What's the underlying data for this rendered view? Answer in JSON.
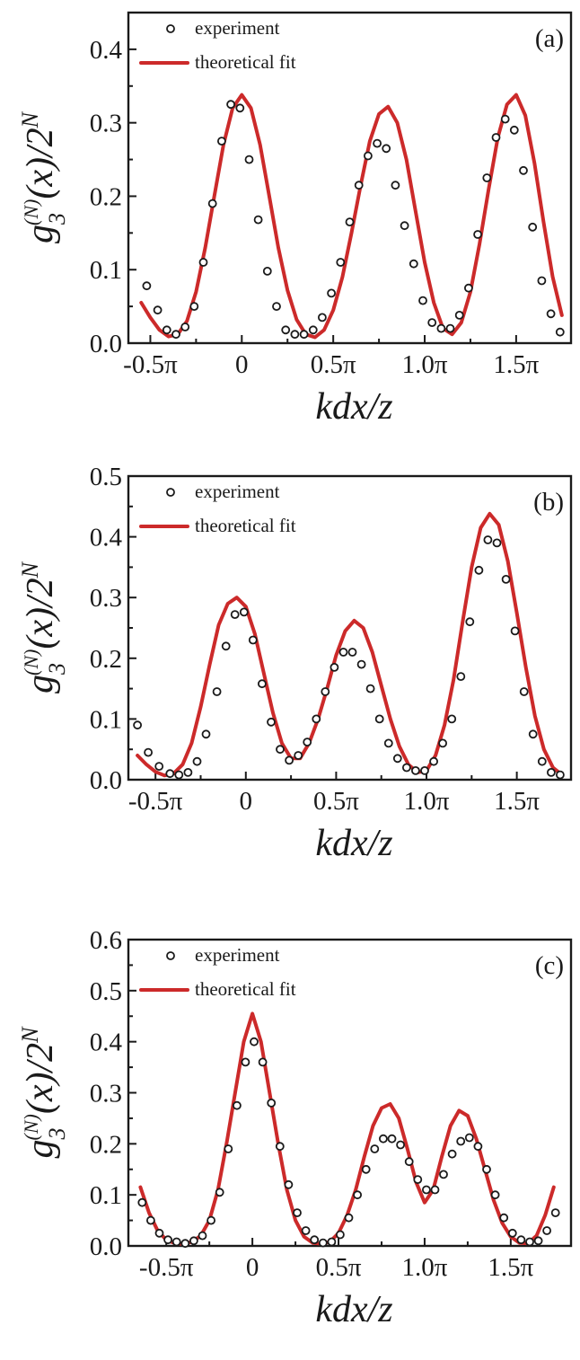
{
  "chart_data": [
    {
      "type": "scatter",
      "panel_label": "(a)",
      "xlabel": "kdx/z",
      "ylabel": "g3(N)(x)/2N",
      "xlim": [
        -0.62,
        1.8
      ],
      "ylim": [
        0.0,
        0.45
      ],
      "x_tick_labels": [
        "-0.5π",
        "0",
        "0.5π",
        "1.0π",
        "1.5π"
      ],
      "x_ticks": [
        -0.5,
        0,
        0.5,
        1.0,
        1.5
      ],
      "y_tick_labels": [
        "0.0",
        "0.1",
        "0.2",
        "0.3",
        "0.4"
      ],
      "y_ticks": [
        0.0,
        0.1,
        0.2,
        0.3,
        0.4
      ],
      "legend": {
        "position": "top-left",
        "entries": [
          "experiment",
          "theoretical fit"
        ]
      },
      "series": [
        {
          "name": "experiment",
          "kind": "points",
          "x": [
            -0.52,
            -0.46,
            -0.41,
            -0.36,
            -0.31,
            -0.26,
            -0.21,
            -0.16,
            -0.11,
            -0.06,
            -0.01,
            0.04,
            0.09,
            0.14,
            0.19,
            0.24,
            0.29,
            0.34,
            0.39,
            0.44,
            0.49,
            0.54,
            0.59,
            0.64,
            0.69,
            0.74,
            0.79,
            0.84,
            0.89,
            0.94,
            0.99,
            1.04,
            1.09,
            1.14,
            1.19,
            1.24,
            1.29,
            1.34,
            1.39,
            1.44,
            1.49,
            1.54,
            1.59,
            1.64,
            1.69,
            1.74
          ],
          "y": [
            0.078,
            0.045,
            0.018,
            0.012,
            0.022,
            0.05,
            0.11,
            0.19,
            0.275,
            0.325,
            0.32,
            0.25,
            0.168,
            0.098,
            0.05,
            0.018,
            0.012,
            0.012,
            0.018,
            0.035,
            0.068,
            0.11,
            0.165,
            0.215,
            0.255,
            0.272,
            0.265,
            0.215,
            0.16,
            0.108,
            0.058,
            0.028,
            0.02,
            0.02,
            0.038,
            0.075,
            0.148,
            0.225,
            0.28,
            0.305,
            0.29,
            0.235,
            0.158,
            0.085,
            0.04,
            0.015
          ]
        },
        {
          "name": "theoretical fit",
          "kind": "line",
          "x": [
            -0.55,
            -0.5,
            -0.45,
            -0.4,
            -0.35,
            -0.3,
            -0.25,
            -0.2,
            -0.15,
            -0.1,
            -0.05,
            0,
            0.05,
            0.1,
            0.15,
            0.2,
            0.25,
            0.3,
            0.35,
            0.4,
            0.45,
            0.5,
            0.55,
            0.6,
            0.65,
            0.7,
            0.75,
            0.8,
            0.85,
            0.9,
            0.95,
            1,
            1.05,
            1.1,
            1.15,
            1.2,
            1.25,
            1.3,
            1.35,
            1.4,
            1.45,
            1.5,
            1.55,
            1.6,
            1.65,
            1.7,
            1.75
          ],
          "y": [
            0.055,
            0.035,
            0.018,
            0.009,
            0.012,
            0.03,
            0.07,
            0.13,
            0.2,
            0.27,
            0.32,
            0.338,
            0.32,
            0.27,
            0.2,
            0.13,
            0.072,
            0.032,
            0.012,
            0.008,
            0.018,
            0.045,
            0.09,
            0.15,
            0.215,
            0.275,
            0.312,
            0.322,
            0.3,
            0.25,
            0.18,
            0.11,
            0.055,
            0.02,
            0.012,
            0.028,
            0.07,
            0.135,
            0.21,
            0.28,
            0.325,
            0.338,
            0.31,
            0.245,
            0.165,
            0.09,
            0.038
          ]
        }
      ]
    },
    {
      "type": "scatter",
      "panel_label": "(b)",
      "xlabel": "kdx/z",
      "ylabel": "g3(N)(x)/2N",
      "xlim": [
        -0.65,
        1.8
      ],
      "ylim": [
        0.0,
        0.5
      ],
      "x_tick_labels": [
        "-0.5π",
        "0",
        "0.5π",
        "1.0π",
        "1.5π"
      ],
      "x_ticks": [
        -0.5,
        0,
        0.5,
        1.0,
        1.5
      ],
      "y_tick_labels": [
        "0.0",
        "0.1",
        "0.2",
        "0.3",
        "0.4",
        "0.5"
      ],
      "y_ticks": [
        0.0,
        0.1,
        0.2,
        0.3,
        0.4,
        0.5
      ],
      "legend": {
        "position": "top-left",
        "entries": [
          "experiment",
          "theoretical fit"
        ]
      },
      "series": [
        {
          "name": "experiment",
          "kind": "points",
          "x": [
            -0.6,
            -0.54,
            -0.48,
            -0.42,
            -0.37,
            -0.32,
            -0.27,
            -0.22,
            -0.16,
            -0.11,
            -0.06,
            -0.01,
            0.04,
            0.09,
            0.14,
            0.19,
            0.24,
            0.29,
            0.34,
            0.39,
            0.44,
            0.49,
            0.54,
            0.59,
            0.64,
            0.69,
            0.74,
            0.79,
            0.84,
            0.89,
            0.94,
            0.99,
            1.04,
            1.09,
            1.14,
            1.19,
            1.24,
            1.29,
            1.34,
            1.39,
            1.44,
            1.49,
            1.54,
            1.59,
            1.64,
            1.69,
            1.74
          ],
          "y": [
            0.09,
            0.045,
            0.022,
            0.01,
            0.008,
            0.012,
            0.03,
            0.075,
            0.145,
            0.22,
            0.272,
            0.276,
            0.23,
            0.158,
            0.095,
            0.05,
            0.032,
            0.04,
            0.062,
            0.1,
            0.145,
            0.185,
            0.21,
            0.21,
            0.19,
            0.15,
            0.1,
            0.06,
            0.035,
            0.02,
            0.015,
            0.015,
            0.03,
            0.06,
            0.1,
            0.17,
            0.26,
            0.345,
            0.395,
            0.39,
            0.33,
            0.245,
            0.145,
            0.075,
            0.03,
            0.012,
            0.008
          ]
        },
        {
          "name": "theoretical fit",
          "kind": "line",
          "x": [
            -0.6,
            -0.55,
            -0.5,
            -0.45,
            -0.4,
            -0.35,
            -0.3,
            -0.25,
            -0.2,
            -0.15,
            -0.1,
            -0.05,
            0,
            0.05,
            0.1,
            0.15,
            0.2,
            0.25,
            0.3,
            0.35,
            0.4,
            0.45,
            0.5,
            0.55,
            0.6,
            0.65,
            0.7,
            0.75,
            0.8,
            0.85,
            0.9,
            0.95,
            1,
            1.05,
            1.1,
            1.15,
            1.2,
            1.25,
            1.3,
            1.35,
            1.4,
            1.45,
            1.5,
            1.55,
            1.6,
            1.65,
            1.7,
            1.75
          ],
          "y": [
            0.04,
            0.025,
            0.013,
            0.007,
            0.01,
            0.025,
            0.06,
            0.12,
            0.19,
            0.255,
            0.29,
            0.3,
            0.285,
            0.24,
            0.175,
            0.11,
            0.06,
            0.035,
            0.035,
            0.06,
            0.1,
            0.15,
            0.205,
            0.245,
            0.262,
            0.25,
            0.21,
            0.155,
            0.1,
            0.055,
            0.025,
            0.012,
            0.015,
            0.04,
            0.09,
            0.165,
            0.26,
            0.35,
            0.415,
            0.438,
            0.42,
            0.36,
            0.275,
            0.185,
            0.105,
            0.05,
            0.02,
            0.008
          ]
        }
      ]
    },
    {
      "type": "scatter",
      "panel_label": "(c)",
      "xlabel": "kdx/z",
      "ylabel": "g3(N)(x)/2N",
      "xlim": [
        -0.72,
        1.85
      ],
      "ylim": [
        0.0,
        0.6
      ],
      "x_tick_labels": [
        "-0.5π",
        "0",
        "0.5π",
        "1.0π",
        "1.5π"
      ],
      "x_ticks": [
        -0.5,
        0,
        0.5,
        1.0,
        1.5
      ],
      "y_tick_labels": [
        "0.0",
        "0.1",
        "0.2",
        "0.3",
        "0.4",
        "0.5",
        "0.6"
      ],
      "y_ticks": [
        0.0,
        0.1,
        0.2,
        0.3,
        0.4,
        0.5,
        0.6
      ],
      "legend": {
        "position": "top-left",
        "entries": [
          "experiment",
          "theoretical fit"
        ]
      },
      "series": [
        {
          "name": "experiment",
          "kind": "points",
          "x": [
            -0.64,
            -0.59,
            -0.54,
            -0.49,
            -0.44,
            -0.39,
            -0.34,
            -0.29,
            -0.24,
            -0.19,
            -0.14,
            -0.09,
            -0.04,
            0.01,
            0.06,
            0.11,
            0.16,
            0.21,
            0.26,
            0.31,
            0.36,
            0.41,
            0.46,
            0.51,
            0.56,
            0.61,
            0.66,
            0.71,
            0.76,
            0.81,
            0.86,
            0.91,
            0.96,
            1.01,
            1.06,
            1.11,
            1.16,
            1.21,
            1.26,
            1.31,
            1.36,
            1.41,
            1.46,
            1.51,
            1.56,
            1.61,
            1.66,
            1.71,
            1.76
          ],
          "y": [
            0.085,
            0.05,
            0.025,
            0.012,
            0.008,
            0.005,
            0.01,
            0.02,
            0.05,
            0.105,
            0.19,
            0.275,
            0.36,
            0.4,
            0.36,
            0.28,
            0.195,
            0.12,
            0.065,
            0.03,
            0.012,
            0.006,
            0.008,
            0.022,
            0.055,
            0.1,
            0.15,
            0.19,
            0.21,
            0.21,
            0.198,
            0.165,
            0.13,
            0.11,
            0.11,
            0.14,
            0.18,
            0.205,
            0.212,
            0.195,
            0.15,
            0.1,
            0.055,
            0.025,
            0.012,
            0.008,
            0.01,
            0.03,
            0.065
          ]
        },
        {
          "name": "theoretical fit",
          "kind": "line",
          "x": [
            -0.65,
            -0.6,
            -0.55,
            -0.5,
            -0.45,
            -0.4,
            -0.35,
            -0.3,
            -0.25,
            -0.2,
            -0.15,
            -0.1,
            -0.05,
            0,
            0.05,
            0.1,
            0.15,
            0.2,
            0.25,
            0.3,
            0.35,
            0.4,
            0.45,
            0.5,
            0.55,
            0.6,
            0.65,
            0.7,
            0.75,
            0.8,
            0.85,
            0.9,
            0.95,
            1,
            1.05,
            1.1,
            1.15,
            1.2,
            1.25,
            1.3,
            1.35,
            1.4,
            1.45,
            1.5,
            1.55,
            1.6,
            1.65,
            1.7,
            1.75
          ],
          "y": [
            0.115,
            0.065,
            0.03,
            0.012,
            0.005,
            0.004,
            0.008,
            0.02,
            0.05,
            0.11,
            0.2,
            0.3,
            0.4,
            0.455,
            0.4,
            0.3,
            0.2,
            0.11,
            0.05,
            0.018,
            0.006,
            0.004,
            0.008,
            0.025,
            0.06,
            0.11,
            0.175,
            0.235,
            0.27,
            0.278,
            0.25,
            0.19,
            0.125,
            0.085,
            0.11,
            0.175,
            0.235,
            0.265,
            0.255,
            0.21,
            0.15,
            0.09,
            0.045,
            0.018,
            0.006,
            0.005,
            0.02,
            0.06,
            0.115
          ]
        }
      ]
    }
  ]
}
